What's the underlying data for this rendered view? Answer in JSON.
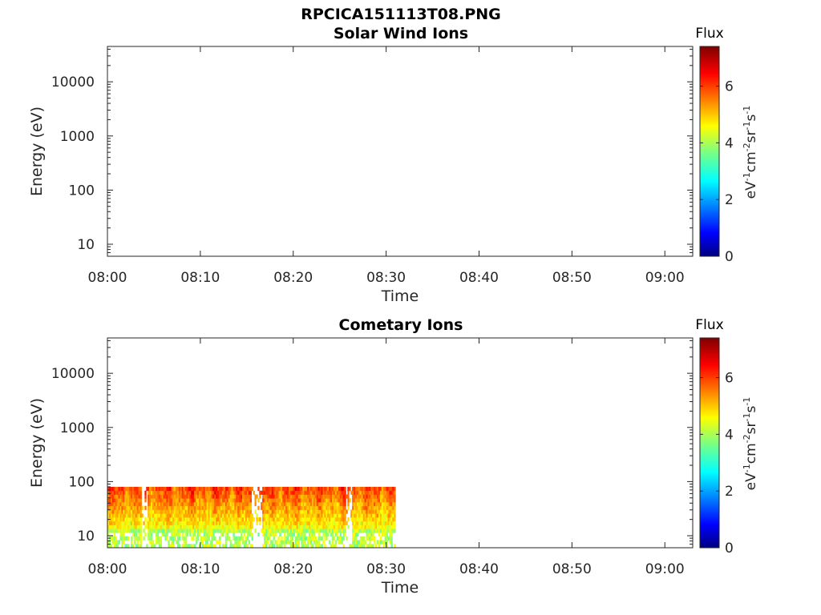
{
  "figure_title": "RPCICA151113T08.PNG",
  "chart_data": [
    {
      "type": "heatmap",
      "title": "Solar Wind Ions",
      "xlabel": "Time",
      "ylabel": "Energy (eV)",
      "x_ticks": [
        "08:00",
        "08:10",
        "08:20",
        "08:30",
        "08:40",
        "08:50",
        "09:00"
      ],
      "x_range_minutes": [
        0,
        63
      ],
      "y_scale": "log",
      "y_ticks": [
        10,
        100,
        1000,
        10000
      ],
      "y_tick_labels": [
        "10",
        "100",
        "1000",
        "10000"
      ],
      "y_range": [
        6,
        45000
      ],
      "colorbar": {
        "title": "Flux",
        "label": "eV⁻¹cm⁻²sr⁻¹s⁻¹",
        "ticks": [
          0,
          2,
          4,
          6
        ],
        "range": [
          0,
          7.4
        ],
        "colormap": "jet"
      },
      "data_extent": null,
      "values": []
    },
    {
      "type": "heatmap",
      "title": "Cometary Ions",
      "xlabel": "Time",
      "ylabel": "Energy (eV)",
      "x_ticks": [
        "08:00",
        "08:10",
        "08:20",
        "08:30",
        "08:40",
        "08:50",
        "09:00"
      ],
      "x_range_minutes": [
        0,
        63
      ],
      "y_scale": "log",
      "y_ticks": [
        10,
        100,
        1000,
        10000
      ],
      "y_tick_labels": [
        "10",
        "100",
        "1000",
        "10000"
      ],
      "y_range": [
        6,
        45000
      ],
      "colorbar": {
        "title": "Flux",
        "label": "eV⁻¹cm⁻²sr⁻¹s⁻¹",
        "ticks": [
          0,
          2,
          4,
          6
        ],
        "range": [
          0,
          7.4
        ],
        "colormap": "jet"
      },
      "data_extent": {
        "time_minutes": [
          0,
          31
        ],
        "energy_ev": [
          6,
          80
        ]
      },
      "flux_typical_range": [
        3.5,
        6.8
      ]
    }
  ]
}
